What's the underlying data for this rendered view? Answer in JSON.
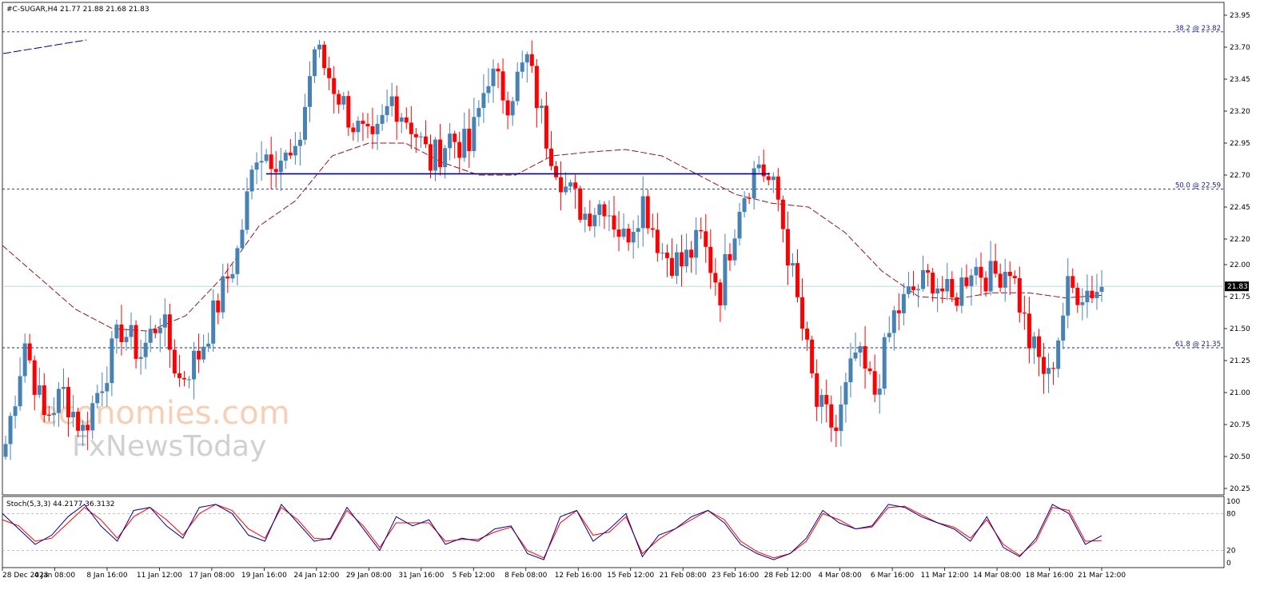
{
  "window": {
    "symbol_line": "#C-SUGAR,H4  21.77 21.88 21.68 21.83",
    "current_price_label": "21.83"
  },
  "watermark": {
    "line1": "economies.com",
    "line2": "FxNewsToday"
  },
  "colors": {
    "bull": "#4682b4",
    "bear": "#ff0000",
    "ma": "#8b1a1a",
    "fib": "#1a237e",
    "support": "#00008b",
    "stoch_main": "#00008b",
    "stoch_signal": "#ff0000",
    "bid_line": "#a8d8e0",
    "background": "#ffffff"
  },
  "chart_data": {
    "type": "candlestick",
    "price_axis": {
      "min": 20.2,
      "max": 24.05,
      "ticks": [
        "23.95",
        "23.70",
        "23.45",
        "23.20",
        "22.95",
        "22.70",
        "22.45",
        "22.20",
        "22.00",
        "21.75",
        "21.50",
        "21.25",
        "21.00",
        "20.75",
        "20.50",
        "20.25"
      ]
    },
    "time_labels": [
      "28 Dec 2023",
      "4 Jan 08:00",
      "8 Jan 16:00",
      "11 Jan 12:00",
      "17 Jan 08:00",
      "19 Jan 16:00",
      "24 Jan 12:00",
      "29 Jan 08:00",
      "31 Jan 16:00",
      "5 Feb 12:00",
      "8 Feb 08:00",
      "12 Feb 16:00",
      "15 Feb 12:00",
      "21 Feb 08:00",
      "23 Feb 16:00",
      "28 Feb 12:00",
      "4 Mar 08:00",
      "6 Mar 16:00",
      "11 Mar 12:00",
      "14 Mar 08:00",
      "18 Mar 16:00",
      "21 Mar 12:00"
    ],
    "fibonacci": [
      {
        "label": "38.2 @ 23.82",
        "price": 23.82
      },
      {
        "label": "50.0 @ 22.59",
        "price": 22.59
      },
      {
        "label": "61.8 @ 21.35",
        "price": 21.35
      }
    ],
    "support_line": {
      "price": 22.71
    },
    "bid_price": 21.83,
    "close_anchors": [
      20.6,
      21.4,
      20.8,
      21.0,
      20.7,
      21.1,
      21.5,
      21.3,
      21.6,
      21.1,
      21.3,
      21.7,
      22.1,
      22.9,
      22.85,
      22.8,
      23.7,
      23.4,
      23.1,
      22.9,
      23.3,
      23.1,
      22.8,
      23.0,
      22.9,
      23.5,
      23.3,
      23.6,
      23.0,
      22.6,
      22.4,
      22.5,
      22.2,
      22.5,
      22.1,
      22.0,
      22.2,
      21.8,
      22.5,
      22.8,
      22.5,
      21.7,
      20.9,
      20.7,
      21.3,
      21.0,
      21.6,
      21.8,
      21.9,
      21.7,
      22.0,
      21.9,
      22.0,
      21.4,
      21.1,
      21.8,
      21.8,
      21.83
    ],
    "moving_average": [
      22.15,
      21.9,
      21.65,
      21.5,
      21.48,
      21.6,
      21.9,
      22.3,
      22.5,
      22.85,
      22.95,
      22.95,
      22.8,
      22.7,
      22.7,
      22.85,
      22.88,
      22.9,
      22.85,
      22.7,
      22.55,
      22.48,
      22.45,
      22.25,
      21.95,
      21.75,
      21.73,
      21.78,
      21.78,
      21.74,
      21.76
    ],
    "stochastic": {
      "label": "Stoch(5,3,3) 44.2177 36.3132",
      "levels": [
        80,
        20
      ],
      "axis_ticks": [
        "100",
        "80",
        "20",
        "0"
      ],
      "main": [
        80,
        55,
        30,
        45,
        75,
        95,
        60,
        35,
        85,
        90,
        60,
        40,
        90,
        95,
        80,
        45,
        35,
        95,
        65,
        35,
        40,
        90,
        55,
        20,
        75,
        60,
        70,
        30,
        40,
        35,
        55,
        60,
        15,
        5,
        75,
        85,
        35,
        55,
        80,
        10,
        45,
        55,
        75,
        85,
        65,
        30,
        15,
        5,
        15,
        40,
        85,
        65,
        55,
        60,
        95,
        90,
        75,
        65,
        55,
        35,
        75,
        25,
        10,
        40,
        95,
        80,
        30,
        44
      ],
      "signal": [
        70,
        60,
        35,
        40,
        65,
        90,
        70,
        40,
        75,
        90,
        70,
        45,
        80,
        95,
        85,
        55,
        40,
        90,
        70,
        40,
        38,
        85,
        60,
        25,
        65,
        65,
        65,
        35,
        38,
        38,
        50,
        58,
        20,
        8,
        65,
        85,
        45,
        50,
        75,
        15,
        38,
        55,
        70,
        85,
        70,
        35,
        18,
        8,
        15,
        35,
        80,
        70,
        55,
        58,
        90,
        92,
        78,
        65,
        58,
        40,
        70,
        30,
        12,
        35,
        90,
        85,
        35,
        36
      ]
    }
  }
}
